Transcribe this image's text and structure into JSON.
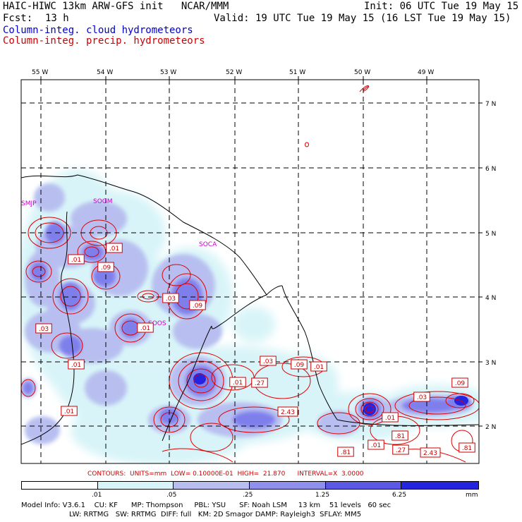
{
  "header": {
    "title": "HAIC-HIWC 13km ARW-GFS init   NCAR/MMM",
    "init": "Init: 06 UTC Tue 19 May 15",
    "fcst_label": "Fcst:",
    "fcst_value": "13 h",
    "valid": "Valid: 19 UTC Tue 19 May 15 (16 LST Tue 19 May 15)",
    "field_cloud": "Column-integ. cloud hydrometeors",
    "field_precip": "Column-integ. precip. hydrometeors"
  },
  "colors": {
    "cloud_text": "#0000cc",
    "precip_text": "#cc0000",
    "station": "#cc00cc",
    "scale": [
      "#ffffff",
      "#d8f4f8",
      "#b8bff0",
      "#8f90ee",
      "#5b58e6",
      "#2424e0"
    ]
  },
  "map": {
    "lon_labels": [
      "55 W",
      "54 W",
      "53 W",
      "52 W",
      "51 W",
      "50 W",
      "49 W"
    ],
    "lat_labels": [
      "7 N",
      "6 N",
      "5 N",
      "4 N",
      "3 N",
      "2 N"
    ],
    "stations": [
      "SMJP",
      "SOGM",
      "SOCA",
      "SOOS"
    ],
    "contour_labels": [
      ".01",
      ".01",
      ".09",
      ".03",
      ".09",
      ".03",
      ".01",
      ".01",
      ".03",
      ".09",
      ".01",
      ".01",
      ".27",
      ".01",
      "2.43",
      ".03",
      ".09",
      ".01",
      ".81",
      ".27",
      "2.43",
      ".81",
      ".01",
      ".81"
    ]
  },
  "contour_info": {
    "label": "CONTOURS:",
    "units": "UNITS=mm",
    "low": "LOW= 0.10000E-01",
    "high": "HIGH=  21.870",
    "interval": "INTERVAL=X  3.0000"
  },
  "scale": {
    "ticks": [
      ".01",
      ".05",
      ".25",
      "1.25",
      "6.25"
    ],
    "unit": "mm"
  },
  "model_info": {
    "line1": "Model Info: V3.6.1    CU: KF      MP: Thompson     PBL: YSU      SF: Noah LSM     13 km    51 levels   60 sec",
    "line2": "LW: RRTMG   SW: RRTMG  DIFF: full   KM: 2D Smagor DAMP: Rayleigh3  SFLAY: MM5"
  }
}
